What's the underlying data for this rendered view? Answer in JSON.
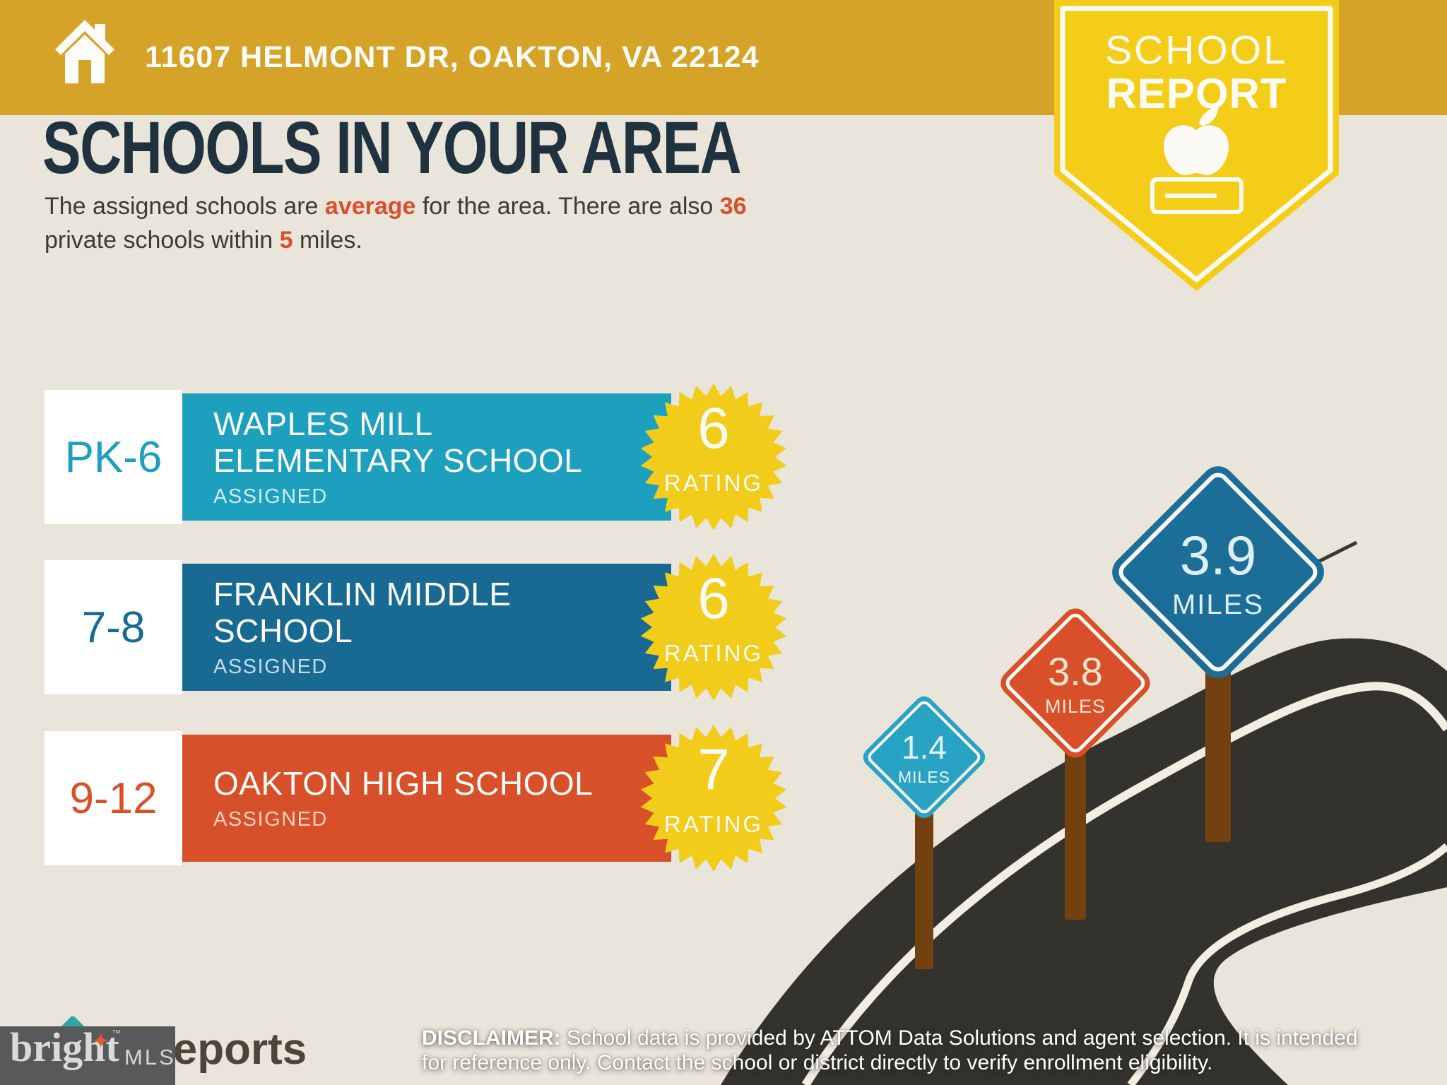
{
  "header": {
    "address": "11607 HELMONT DR, OAKTON, VA 22124"
  },
  "ribbon": {
    "line1": "SCHOOL",
    "line2": "REPORT"
  },
  "main": {
    "title": "SCHOOLS IN YOUR AREA",
    "intro": {
      "l1_a": "The assigned schools are ",
      "l1_highlight": "average",
      "l1_b": " for the area. There are also ",
      "l1_count": "36",
      "l2_a": "private schools within ",
      "l2_distance": "5",
      "l2_b": " miles."
    }
  },
  "schools": [
    {
      "grades": "PK-6",
      "name_line1": "WAPLES MILL",
      "name_line2": "ELEMENTARY SCHOOL",
      "status": "ASSIGNED",
      "rating": "6",
      "rating_label": "RATING",
      "color": "#1D9FBE"
    },
    {
      "grades": "7-8",
      "name_line1": "FRANKLIN MIDDLE",
      "name_line2": "SCHOOL",
      "status": "ASSIGNED",
      "rating": "6",
      "rating_label": "RATING",
      "color": "#196A93"
    },
    {
      "grades": "9-12",
      "name_line1": "OAKTON HIGH SCHOOL",
      "name_line2": "",
      "status": "ASSIGNED",
      "rating": "7",
      "rating_label": "RATING",
      "color": "#D8502A"
    }
  ],
  "signs": [
    {
      "distance": "1.4",
      "unit": "MILES",
      "color": "#28A3C4"
    },
    {
      "distance": "3.8",
      "unit": "MILES",
      "color": "#D8502A"
    },
    {
      "distance": "3.9",
      "unit": "MILES",
      "color": "#1C6E99"
    }
  ],
  "footer": {
    "brand": "bright",
    "brand_star": "✦",
    "brand_tm": "™",
    "brand_suffix": "MLS",
    "partner_logo_text": "Reports",
    "disclaimer_label": "DISCLAIMER:",
    "disclaimer_line1": " School data is provided by ATTOM Data Solutions and agent selection. It is intended",
    "disclaimer_line2": "for reference only. Contact the school or district directly to verify enrollment eligibility."
  },
  "theme": {
    "background": "#EAE5DA",
    "header_gold": "#D4A327",
    "ribbon_yellow": "#F3CD17",
    "starburst_yellow": "#F2CC1B",
    "heading_navy": "#20313F",
    "accent_red": "#D8512C",
    "teal": "#1D9FBE",
    "dark_blue": "#196A93",
    "orange": "#D8502A",
    "road_charcoal": "#34322D",
    "post_brown": "#73410F",
    "logo_gray_box": "#58595B"
  }
}
